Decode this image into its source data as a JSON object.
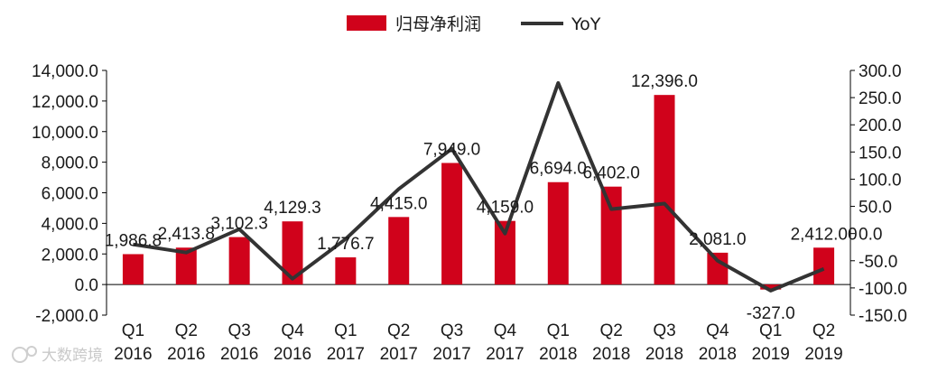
{
  "chart_data": {
    "type": "bar",
    "categories": [
      [
        "Q1",
        "2016"
      ],
      [
        "Q2",
        "2016"
      ],
      [
        "Q3",
        "2016"
      ],
      [
        "Q4",
        "2016"
      ],
      [
        "Q1",
        "2017"
      ],
      [
        "Q2",
        "2017"
      ],
      [
        "Q3",
        "2017"
      ],
      [
        "Q4",
        "2017"
      ],
      [
        "Q1",
        "2018"
      ],
      [
        "Q2",
        "2018"
      ],
      [
        "Q3",
        "2018"
      ],
      [
        "Q4",
        "2018"
      ],
      [
        "Q1",
        "2019"
      ],
      [
        "Q2",
        "2019"
      ]
    ],
    "series": [
      {
        "name": "归母净利润",
        "type": "bar",
        "axis": "left",
        "color": "#d0021b",
        "values": [
          1986.8,
          2413.8,
          3102.3,
          4129.3,
          1776.7,
          4415.0,
          7949.0,
          4159.0,
          6694.0,
          6402.0,
          12396.0,
          2081.0,
          -327.0,
          2412.0
        ],
        "labels": [
          "1,986.8",
          "2,413.8",
          "3,102.3",
          "4,129.3",
          "1,776.7",
          "4,415.0",
          "7,949.0",
          "4,159.0",
          "6,694.0",
          "6,402.0",
          "12,396.0",
          "2,081.0",
          "-327.0",
          "2,412.00"
        ]
      },
      {
        "name": "YoY",
        "type": "line",
        "axis": "right",
        "color": "#333333",
        "values": [
          -20,
          -35,
          8,
          -83,
          -10,
          82,
          156,
          0,
          277,
          45,
          55,
          -50,
          -105,
          -65
        ]
      }
    ],
    "y_left": {
      "min": -2000,
      "max": 14000,
      "ticks": [
        "-2,000.0",
        "0.0",
        "2,000.0",
        "4,000.0",
        "6,000.0",
        "8,000.0",
        "10,000.0",
        "12,000.0",
        "14,000.0"
      ]
    },
    "y_right": {
      "min": -150,
      "max": 300,
      "ticks": [
        "-150.0",
        "-100.0",
        "-50.0",
        "0.0",
        "50.0",
        "100.0",
        "150.0",
        "200.0",
        "250.0",
        "300.0"
      ]
    },
    "legend_position": "top-center",
    "grid": false,
    "watermark": "大数跨境"
  }
}
